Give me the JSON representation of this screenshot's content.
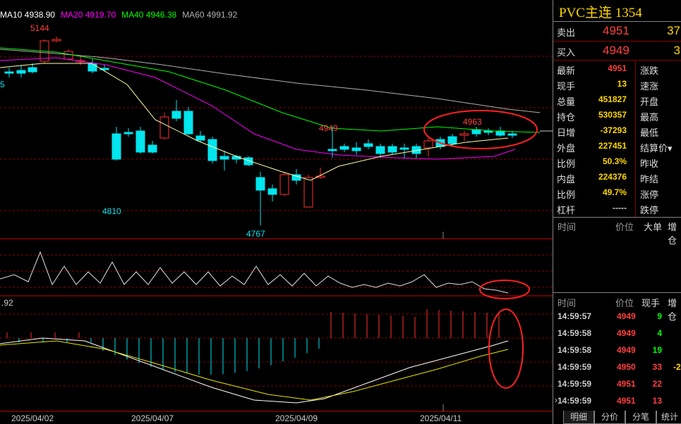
{
  "ma_legend": [
    {
      "text": "MA10 4938.90",
      "color": "#ffffff"
    },
    {
      "text": "MA20 4919.70",
      "color": "#ff00ff"
    },
    {
      "text": "MA40 4946.38",
      "color": "#00ff00"
    },
    {
      "text": "MA60 4991.92",
      "color": "#b0b0b0"
    }
  ],
  "price_labels": {
    "high": "5144",
    "low1": "4810",
    "low2": "4767",
    "mark1": "4949",
    "mark2": "4963",
    "left_edge": "5"
  },
  "indicator_label": ".92",
  "dates": [
    "2025/04/02",
    "2025/04/07",
    "2025/04/09",
    "2025/04/11"
  ],
  "panel": {
    "title": "PVC主连  1354",
    "ask": {
      "label": "卖出",
      "price": "4951",
      "vol": "37"
    },
    "bid": {
      "label": "买入",
      "price": "4949",
      "vol": "3"
    },
    "stats": [
      {
        "l1": "最新",
        "v1": "4951",
        "c": "#ff4040",
        "l2": "涨跌"
      },
      {
        "l1": "现手",
        "v1": "13",
        "c": "#ffd700",
        "l2": "速涨"
      },
      {
        "l1": "总量",
        "v1": "451827",
        "c": "#ffd700",
        "l2": "开盘"
      },
      {
        "l1": "持仓",
        "v1": "530357",
        "c": "#ffd700",
        "l2": "最高"
      },
      {
        "l1": "日增",
        "v1": "-37293",
        "c": "#ffd700",
        "l2": "最低"
      },
      {
        "l1": "外盘",
        "v1": "227451",
        "c": "#ffd700",
        "l2": "结算价▾"
      },
      {
        "l1": "比例",
        "v1": "50.3%",
        "c": "#ffd700",
        "l2": "昨收"
      },
      {
        "l1": "内盘",
        "v1": "224376",
        "c": "#ffd700",
        "l2": "昨结"
      },
      {
        "l1": "比例",
        "v1": "49.7%",
        "c": "#ffd700",
        "l2": "涨停"
      },
      {
        "l1": "杠杆",
        "v1": "-----",
        "c": "#ccc",
        "l2": "跌停"
      }
    ],
    "header1": {
      "time": "时间",
      "price": "价位",
      "big": "大单",
      "inc": "增仓"
    },
    "header2": {
      "time": "时间",
      "price": "价位",
      "hand": "现手",
      "inc": "增仓"
    },
    "ticks": [
      {
        "time": "14:59:57",
        "price": "4949",
        "hand": "9",
        "hand_color": "#00ff00",
        "inc": ""
      },
      {
        "time": "14:59:58",
        "price": "4949",
        "hand": "4",
        "hand_color": "#00ff00",
        "inc": ""
      },
      {
        "time": "14:59:58",
        "price": "4949",
        "hand": "19",
        "hand_color": "#00ff00",
        "inc": ""
      },
      {
        "time": "14:59:59",
        "price": "4950",
        "hand": "33",
        "hand_color": "#ff4040",
        "inc": "-2"
      },
      {
        "time": "14:59:59",
        "price": "4951",
        "hand": "22",
        "hand_color": "#ff4040",
        "inc": ""
      },
      {
        "time": "14:59:59",
        "price": "4951",
        "hand": "13",
        "hand_color": "#ff4040",
        "inc": ""
      }
    ],
    "tabs": [
      "明细",
      "分价",
      "分笔",
      "统计"
    ]
  },
  "colors": {
    "up": "#ff3030",
    "down": "#00e5ee",
    "grid": "#8b0000",
    "circle": "#ff2020"
  }
}
